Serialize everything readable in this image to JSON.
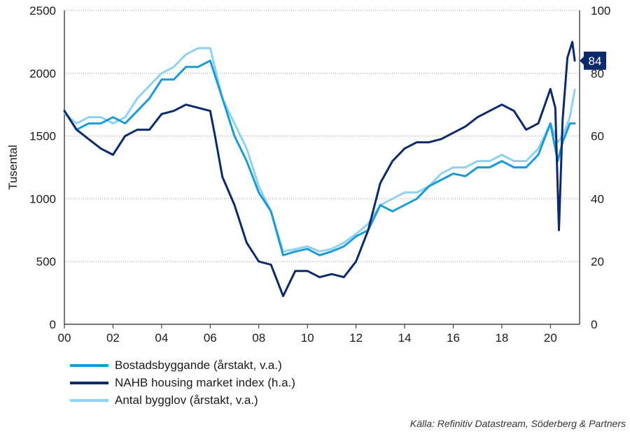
{
  "chart_data": {
    "type": "line",
    "title": "",
    "ylabel_left": "Tusental",
    "ylim_left": [
      0,
      2500
    ],
    "ylim_right": [
      0,
      100
    ],
    "xlim": [
      2000,
      2021.2
    ],
    "left_ticks": [
      "0",
      "500",
      "1000",
      "1500",
      "2000",
      "2500"
    ],
    "right_ticks": [
      "0",
      "20",
      "40",
      "60",
      "80",
      "100"
    ],
    "x_ticks": [
      "00",
      "02",
      "04",
      "06",
      "08",
      "10",
      "12",
      "14",
      "16",
      "18",
      "20"
    ],
    "grid": "horizontal dotted",
    "last_value_label": "84",
    "series": [
      {
        "name": "Bostadsbyggande (årstakt, v.a.)",
        "axis": "left",
        "color": "#1a9ad6",
        "x": [
          2000.0,
          2000.5,
          2001.0,
          2001.5,
          2002.0,
          2002.5,
          2003.0,
          2003.5,
          2004.0,
          2004.5,
          2005.0,
          2005.5,
          2006.0,
          2006.5,
          2007.0,
          2007.5,
          2008.0,
          2008.5,
          2009.0,
          2009.5,
          2010.0,
          2010.5,
          2011.0,
          2011.5,
          2012.0,
          2012.5,
          2013.0,
          2013.5,
          2014.0,
          2014.5,
          2015.0,
          2015.5,
          2016.0,
          2016.5,
          2017.0,
          2017.5,
          2018.0,
          2018.5,
          2019.0,
          2019.5,
          2020.0,
          2020.3,
          2020.5,
          2020.8,
          2021.0
        ],
        "y": [
          1700,
          1550,
          1600,
          1600,
          1650,
          1600,
          1700,
          1800,
          1950,
          1950,
          2050,
          2050,
          2100,
          1800,
          1500,
          1300,
          1050,
          900,
          550,
          580,
          600,
          550,
          580,
          620,
          700,
          750,
          950,
          900,
          950,
          1000,
          1100,
          1150,
          1200,
          1180,
          1250,
          1250,
          1300,
          1250,
          1250,
          1350,
          1600,
          1300,
          1450,
          1600,
          1600
        ]
      },
      {
        "name": "NAHB housing market index (h.a.)",
        "axis": "right",
        "color": "#0a2a6b",
        "x": [
          2000.0,
          2000.5,
          2001.0,
          2001.5,
          2002.0,
          2002.5,
          2003.0,
          2003.5,
          2004.0,
          2004.5,
          2005.0,
          2005.5,
          2006.0,
          2006.2,
          2006.5,
          2007.0,
          2007.5,
          2008.0,
          2008.5,
          2009.0,
          2009.5,
          2010.0,
          2010.5,
          2011.0,
          2011.5,
          2012.0,
          2012.5,
          2013.0,
          2013.5,
          2014.0,
          2014.5,
          2015.0,
          2015.5,
          2016.0,
          2016.5,
          2017.0,
          2017.5,
          2018.0,
          2018.5,
          2019.0,
          2019.5,
          2020.0,
          2020.2,
          2020.35,
          2020.5,
          2020.7,
          2020.9,
          2021.0
        ],
        "y": [
          68,
          62,
          59,
          56,
          54,
          60,
          62,
          62,
          67,
          68,
          70,
          69,
          68,
          60,
          47,
          38,
          26,
          20,
          19,
          9,
          17,
          17,
          15,
          16,
          15,
          20,
          30,
          45,
          52,
          56,
          58,
          58,
          59,
          61,
          63,
          66,
          68,
          70,
          68,
          62,
          64,
          75,
          69,
          30,
          65,
          85,
          90,
          84
        ]
      },
      {
        "name": "Antal bygglov (årstakt, v.a.)",
        "axis": "left",
        "color": "#8fd1ef",
        "x": [
          2000.0,
          2000.5,
          2001.0,
          2001.5,
          2002.0,
          2002.5,
          2003.0,
          2003.5,
          2004.0,
          2004.5,
          2005.0,
          2005.5,
          2006.0,
          2006.5,
          2007.0,
          2007.5,
          2008.0,
          2008.5,
          2009.0,
          2009.5,
          2010.0,
          2010.5,
          2011.0,
          2011.5,
          2012.0,
          2012.5,
          2013.0,
          2013.5,
          2014.0,
          2014.5,
          2015.0,
          2015.5,
          2016.0,
          2016.5,
          2017.0,
          2017.5,
          2018.0,
          2018.5,
          2019.0,
          2019.5,
          2020.0,
          2020.3,
          2020.5,
          2020.8,
          2021.0
        ],
        "y": [
          1680,
          1600,
          1650,
          1650,
          1600,
          1650,
          1800,
          1900,
          2000,
          2050,
          2150,
          2200,
          2200,
          1800,
          1600,
          1400,
          1100,
          900,
          580,
          600,
          620,
          580,
          600,
          650,
          720,
          800,
          950,
          1000,
          1050,
          1050,
          1100,
          1200,
          1250,
          1250,
          1300,
          1300,
          1350,
          1300,
          1300,
          1400,
          1600,
          1450,
          1500,
          1650,
          1870
        ]
      }
    ]
  },
  "legend": [
    {
      "label": "Bostadsbyggande (årstakt, v.a.)",
      "color": "#1a9ad6"
    },
    {
      "label": "NAHB housing market index (h.a.)",
      "color": "#0a2a6b"
    },
    {
      "label": "Antal bygglov (årstakt, v.a.)",
      "color": "#8fd1ef"
    }
  ],
  "source": "Källa: Refinitiv Datastream, Söderberg & Partners"
}
